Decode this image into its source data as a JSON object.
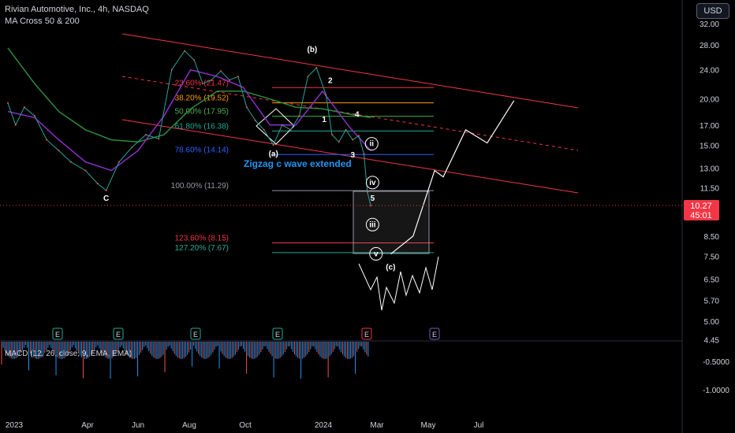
{
  "header": {
    "title": "Rivian Automotive, Inc., 4h, NASDAQ",
    "indicator": "MA Cross 50 & 200",
    "currency_button": "USD"
  },
  "price_label": {
    "value": "10.27",
    "countdown": "45:01",
    "color": "#f23645"
  },
  "macd_label": "MACD (12, 26, close, 9, EMA, EMA)",
  "annotation": "Zigzag c wave extended",
  "colors": {
    "fib_red": "#f23645",
    "fib_green": "#22ab94",
    "fib_blue": "#2962ff",
    "fib_gray": "#9598a1",
    "ma50": "#8b2fc9",
    "ma200": "#2e8b3a",
    "channel": "#f23645",
    "projection": "#ffffff"
  },
  "chart_data": {
    "type": "line",
    "title": "Rivian Automotive, Inc., 4h, NASDAQ",
    "y_scale": "log",
    "y_ticks": [
      "32.00",
      "28.00",
      "24.00",
      "20.00",
      "17.00",
      "15.00",
      "13.00",
      "11.50",
      "10.00",
      "8.50",
      "7.50",
      "6.50",
      "5.70",
      "5.00",
      "4.45"
    ],
    "x_ticks": [
      "2023",
      "Apr",
      "Jun",
      "Aug",
      "Oct",
      "2024",
      "Mar",
      "May",
      "Jul"
    ],
    "macd_ticks": [
      "-0.5000",
      "-1.0000"
    ],
    "price_series": [
      {
        "x": "2023-01-01",
        "y": 19.5
      },
      {
        "x": "2023-01-10",
        "y": 17.0
      },
      {
        "x": "2023-01-20",
        "y": 19.0
      },
      {
        "x": "2023-02-01",
        "y": 18.0
      },
      {
        "x": "2023-02-15",
        "y": 15.5
      },
      {
        "x": "2023-03-01",
        "y": 14.5
      },
      {
        "x": "2023-03-15",
        "y": 13.5
      },
      {
        "x": "2023-04-01",
        "y": 12.8
      },
      {
        "x": "2023-04-15",
        "y": 11.8
      },
      {
        "x": "2023-04-25",
        "y": 11.3
      },
      {
        "x": "2023-05-10",
        "y": 13.5
      },
      {
        "x": "2023-05-25",
        "y": 14.8
      },
      {
        "x": "2023-06-10",
        "y": 16.0
      },
      {
        "x": "2023-06-25",
        "y": 15.6
      },
      {
        "x": "2023-07-10",
        "y": 24.0
      },
      {
        "x": "2023-07-25",
        "y": 27.0
      },
      {
        "x": "2023-08-05",
        "y": 25.5
      },
      {
        "x": "2023-08-15",
        "y": 22.0
      },
      {
        "x": "2023-08-25",
        "y": 22.5
      },
      {
        "x": "2023-09-05",
        "y": 23.8
      },
      {
        "x": "2023-09-15",
        "y": 22.5
      },
      {
        "x": "2023-09-25",
        "y": 23.0
      },
      {
        "x": "2023-10-05",
        "y": 19.0
      },
      {
        "x": "2023-10-15",
        "y": 17.5
      },
      {
        "x": "2023-10-25",
        "y": 16.5
      },
      {
        "x": "2023-11-05",
        "y": 15.0
      },
      {
        "x": "2023-11-15",
        "y": 17.0
      },
      {
        "x": "2023-11-25",
        "y": 16.5
      },
      {
        "x": "2023-12-05",
        "y": 18.0
      },
      {
        "x": "2023-12-15",
        "y": 23.0
      },
      {
        "x": "2023-12-25",
        "y": 24.3
      },
      {
        "x": "2024-01-05",
        "y": 20.5
      },
      {
        "x": "2024-01-12",
        "y": 16.0
      },
      {
        "x": "2024-01-20",
        "y": 15.3
      },
      {
        "x": "2024-01-28",
        "y": 16.5
      },
      {
        "x": "2024-02-05",
        "y": 15.5
      },
      {
        "x": "2024-02-12",
        "y": 15.9
      },
      {
        "x": "2024-02-18",
        "y": 14.2
      },
      {
        "x": "2024-02-22",
        "y": 11.2
      },
      {
        "x": "2024-02-26",
        "y": 10.27
      }
    ],
    "ma50_series": [
      {
        "x": "2023-01-01",
        "y": 18.5
      },
      {
        "x": "2023-02-01",
        "y": 17.8
      },
      {
        "x": "2023-03-01",
        "y": 15.5
      },
      {
        "x": "2023-04-01",
        "y": 13.5
      },
      {
        "x": "2023-05-01",
        "y": 12.8
      },
      {
        "x": "2023-06-01",
        "y": 14.5
      },
      {
        "x": "2023-07-01",
        "y": 18.0
      },
      {
        "x": "2023-08-01",
        "y": 24.0
      },
      {
        "x": "2023-09-01",
        "y": 23.0
      },
      {
        "x": "2023-10-01",
        "y": 21.5
      },
      {
        "x": "2023-11-01",
        "y": 17.0
      },
      {
        "x": "2023-12-01",
        "y": 17.0
      },
      {
        "x": "2024-01-01",
        "y": 21.0
      },
      {
        "x": "2024-02-01",
        "y": 16.8
      },
      {
        "x": "2024-02-26",
        "y": 14.5
      }
    ],
    "ma200_series": [
      {
        "x": "2023-01-01",
        "y": 27.5
      },
      {
        "x": "2023-02-01",
        "y": 22.0
      },
      {
        "x": "2023-03-01",
        "y": 18.5
      },
      {
        "x": "2023-04-01",
        "y": 16.5
      },
      {
        "x": "2023-05-01",
        "y": 15.5
      },
      {
        "x": "2023-06-01",
        "y": 15.3
      },
      {
        "x": "2023-07-01",
        "y": 16.0
      },
      {
        "x": "2023-08-01",
        "y": 18.8
      },
      {
        "x": "2023-09-01",
        "y": 21.0
      },
      {
        "x": "2023-10-01",
        "y": 21.0
      },
      {
        "x": "2023-11-01",
        "y": 20.0
      },
      {
        "x": "2023-12-01",
        "y": 19.0
      },
      {
        "x": "2024-01-01",
        "y": 18.8
      },
      {
        "x": "2024-02-01",
        "y": 18.2
      },
      {
        "x": "2024-02-26",
        "y": 17.8
      }
    ],
    "fib_levels": [
      {
        "label": "23.60% (21.47)",
        "value": 21.47,
        "color": "#f23645"
      },
      {
        "label": "38.20% (19.52)",
        "value": 19.52,
        "color": "#ff9800"
      },
      {
        "label": "50.00% (17.95)",
        "value": 17.95,
        "color": "#4caf50"
      },
      {
        "label": "61.80% (16.38)",
        "value": 16.38,
        "color": "#22ab94"
      },
      {
        "label": "78.60% (14.14)",
        "value": 14.14,
        "color": "#2962ff"
      },
      {
        "label": "100.00% (11.29)",
        "value": 11.29,
        "color": "#9598a1"
      },
      {
        "label": "123.60% (8.15)",
        "value": 8.15,
        "color": "#f23645"
      },
      {
        "label": "127.20% (7.67)",
        "value": 7.67,
        "color": "#22ab94"
      }
    ],
    "wave_labels": [
      {
        "text": "C",
        "x": "2023-04-25",
        "y": 10.6
      },
      {
        "text": "(a)",
        "x": "2023-11-05",
        "y": 14.0
      },
      {
        "text": "(b)",
        "x": "2023-12-20",
        "y": 26.8
      },
      {
        "text": "(c)",
        "x": "2024-03-20",
        "y": 6.9
      },
      {
        "text": "1",
        "x": "2024-01-03",
        "y": 17.3
      },
      {
        "text": "2",
        "x": "2024-01-10",
        "y": 22.1
      },
      {
        "text": "3",
        "x": "2024-02-05",
        "y": 13.9
      },
      {
        "text": "4",
        "x": "2024-02-10",
        "y": 17.9
      },
      {
        "text": "5",
        "x": "2024-02-28",
        "y": 10.6
      },
      {
        "text": "ii",
        "x": "2024-02-27",
        "y": 14.9
      },
      {
        "text": "iv",
        "x": "2024-02-28",
        "y": 11.7
      },
      {
        "text": "iii",
        "x": "2024-02-28",
        "y": 9.0
      },
      {
        "text": "v",
        "x": "2024-03-03",
        "y": 7.5
      }
    ],
    "earnings_markers": [
      "E",
      "E",
      "E",
      "E",
      "E",
      "E"
    ],
    "projection": [
      {
        "x": "2024-03-20",
        "y": 7.6
      },
      {
        "x": "2024-04-15",
        "y": 8.5
      },
      {
        "x": "2024-05-10",
        "y": 12.8
      },
      {
        "x": "2024-05-20",
        "y": 12.3
      },
      {
        "x": "2024-06-15",
        "y": 16.5
      },
      {
        "x": "2024-07-10",
        "y": 15.2
      },
      {
        "x": "2024-08-10",
        "y": 19.8
      }
    ],
    "grid": false
  }
}
